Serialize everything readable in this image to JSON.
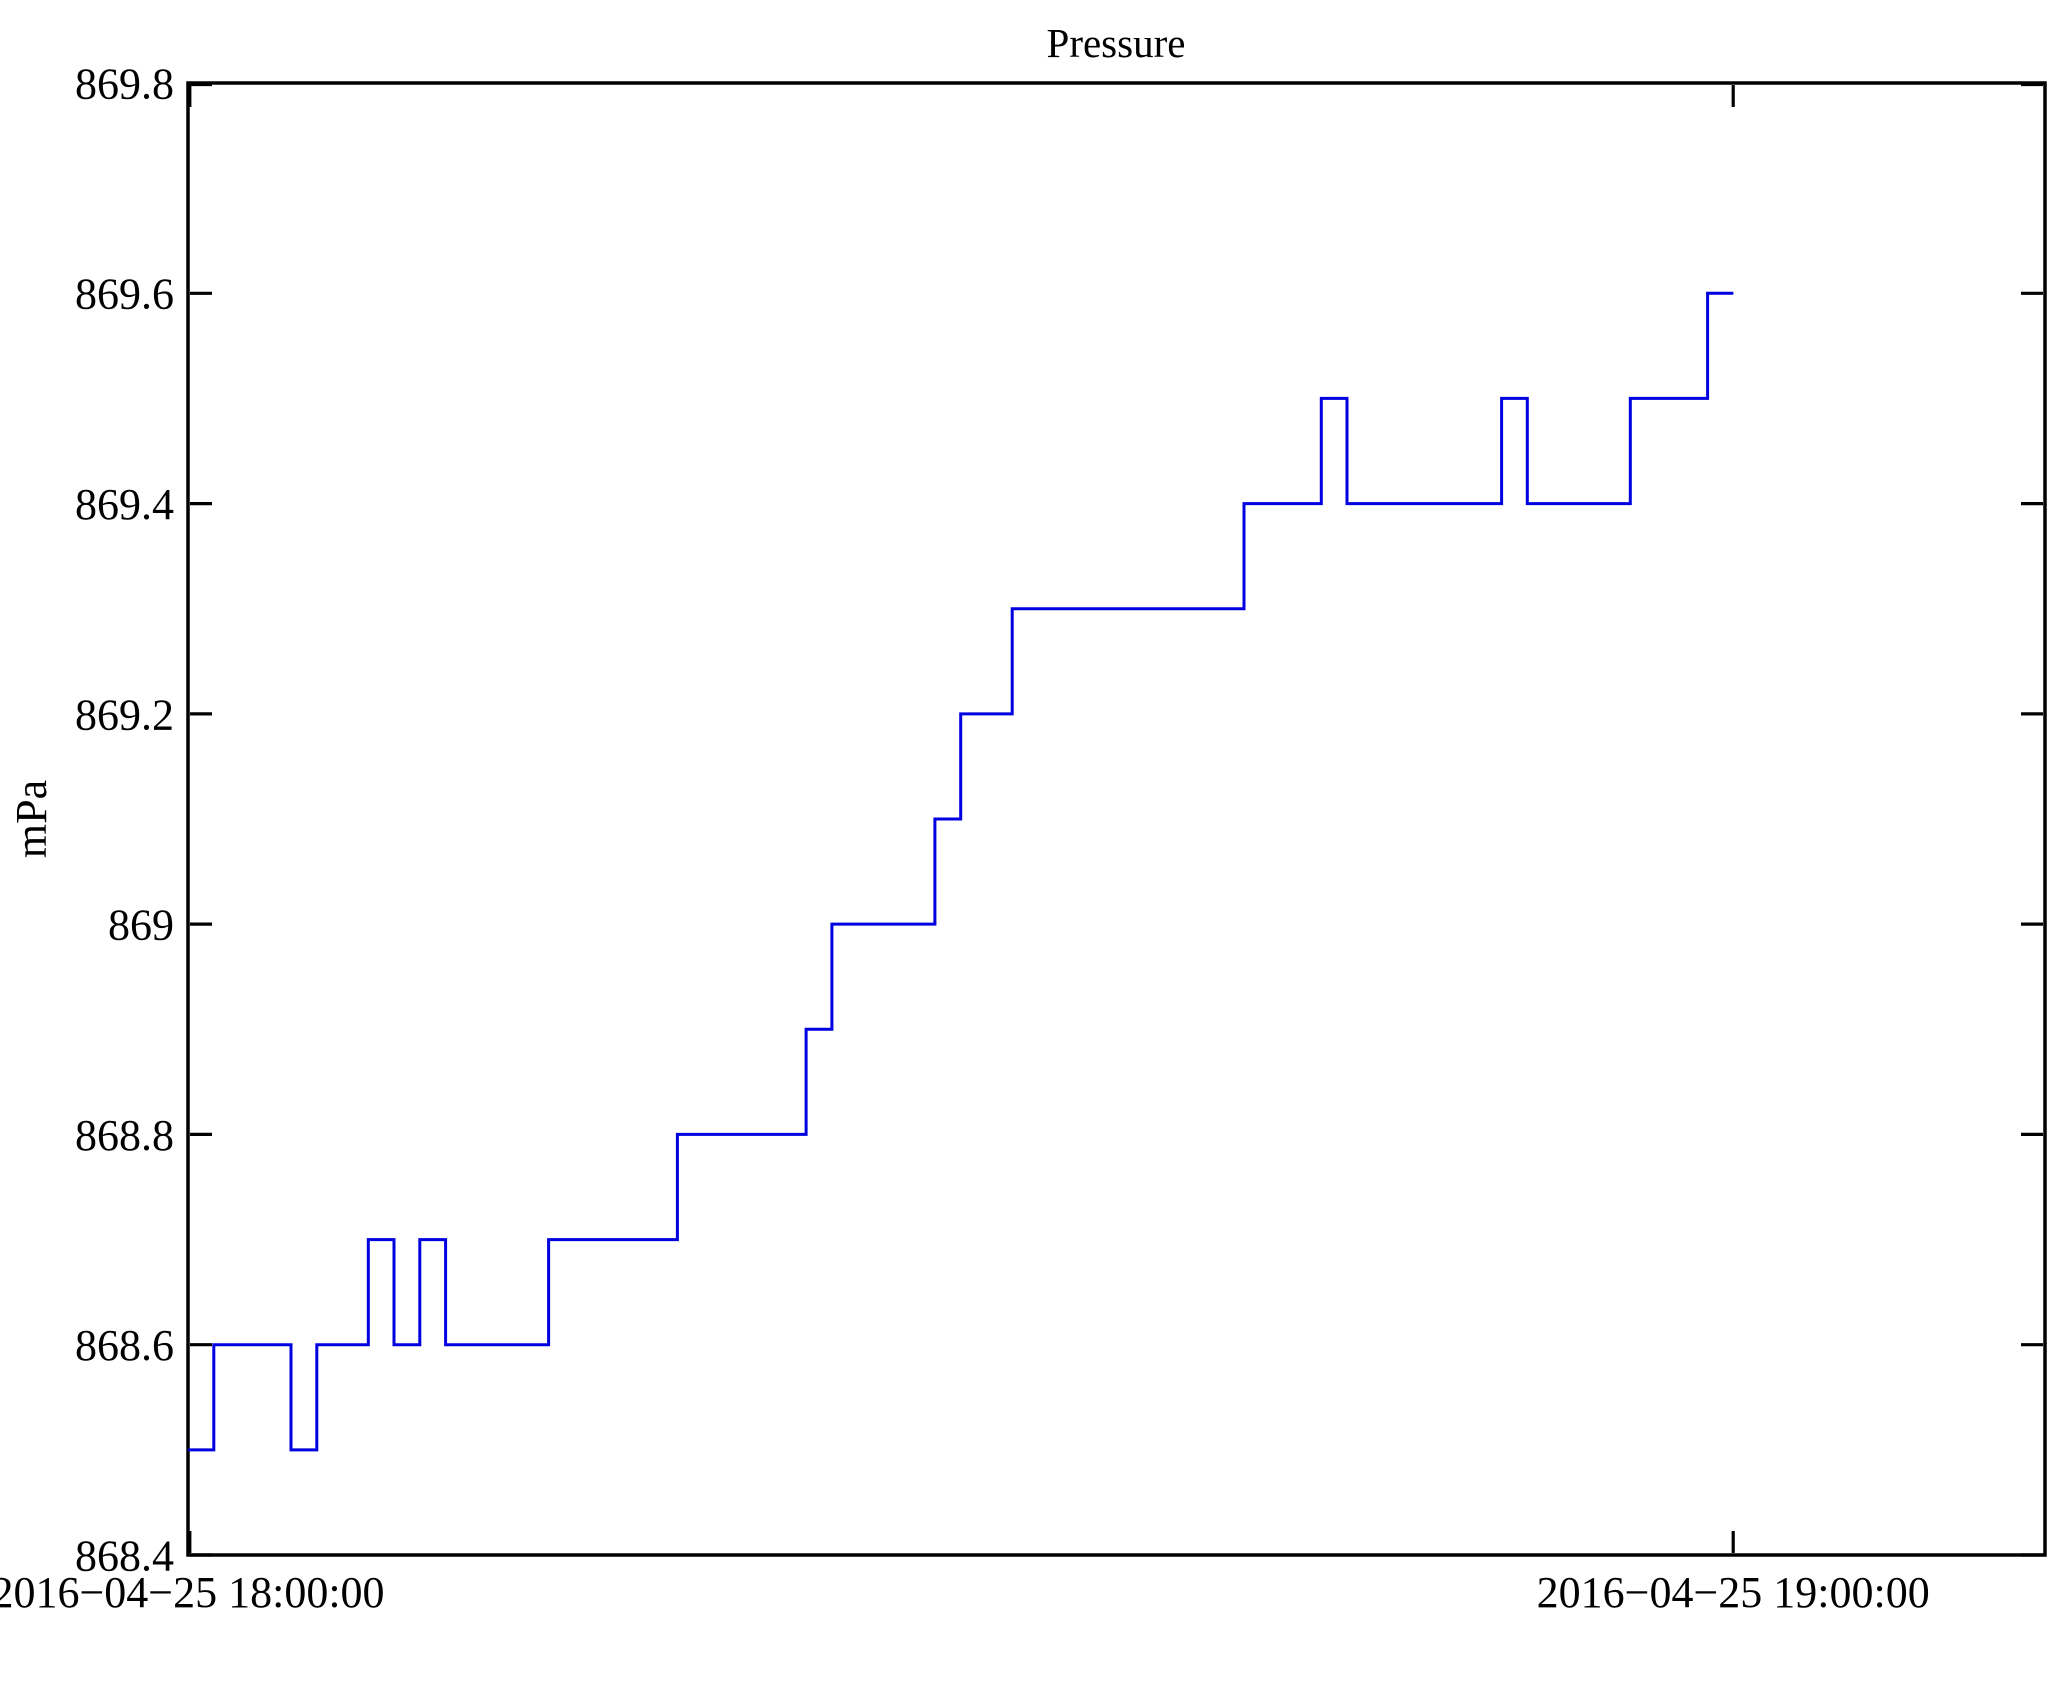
{
  "chart_data": {
    "type": "line",
    "step_mode": "post",
    "title": "Pressure",
    "xlabel": "",
    "ylabel": "mPa",
    "line_color": "#0000e0",
    "axis_color": "#000000",
    "background_color": "#ffffff",
    "grid": false,
    "legend": false,
    "x_axis": {
      "tick_labels": [
        "2016−04−25 18:00:00",
        "2016−04−25 19:00:00"
      ],
      "tick_minutes": [
        0,
        60
      ],
      "range_minutes": [
        0,
        72.1
      ]
    },
    "y_axis": {
      "tick_labels": [
        "868.4",
        "868.6",
        "868.8",
        "869",
        "869.2",
        "869.4",
        "869.6",
        "869.8"
      ],
      "tick_values": [
        868.4,
        868.6,
        868.8,
        869.0,
        869.2,
        869.4,
        869.6,
        869.8
      ],
      "range": [
        868.4,
        869.8
      ]
    },
    "series": [
      {
        "name": "Pressure",
        "unit": "mPa",
        "points_minutes_after_18_00": [
          [
            0,
            868.5
          ],
          [
            1,
            868.6
          ],
          [
            4,
            868.5
          ],
          [
            5,
            868.6
          ],
          [
            7,
            868.7
          ],
          [
            8,
            868.6
          ],
          [
            9,
            868.7
          ],
          [
            10,
            868.6
          ],
          [
            14,
            868.7
          ],
          [
            19,
            868.8
          ],
          [
            24,
            868.9
          ],
          [
            25,
            869.0
          ],
          [
            29,
            869.1
          ],
          [
            30,
            869.2
          ],
          [
            32,
            869.3
          ],
          [
            41,
            869.4
          ],
          [
            44,
            869.5
          ],
          [
            45,
            869.4
          ],
          [
            51,
            869.5
          ],
          [
            52,
            869.4
          ],
          [
            56,
            869.5
          ],
          [
            59,
            869.6
          ],
          [
            60,
            869.6
          ]
        ]
      }
    ]
  }
}
